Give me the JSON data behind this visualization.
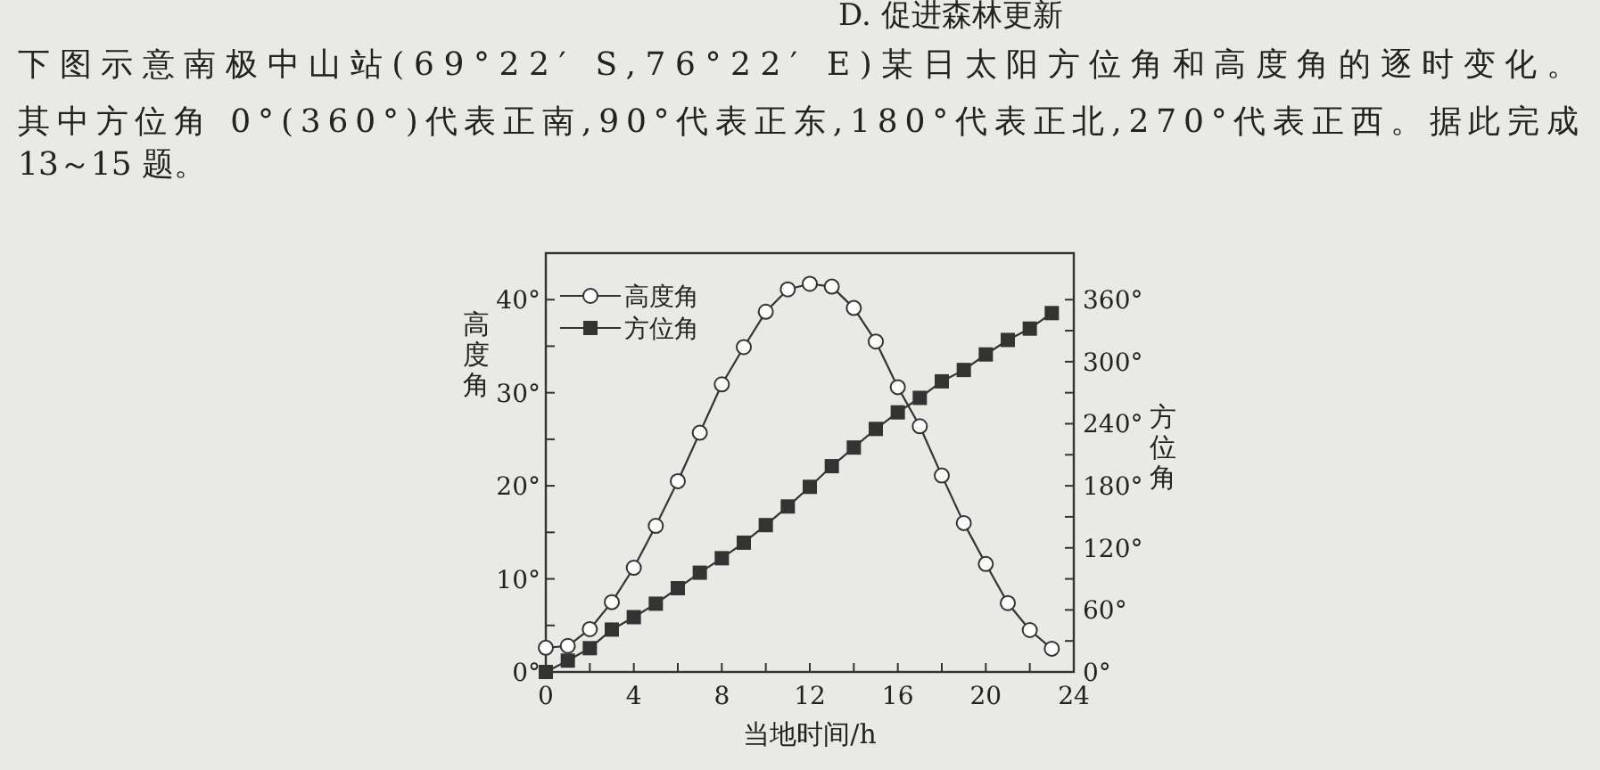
{
  "chart_data": {
    "type": "line",
    "xlabel": "当地时间/h",
    "ylabel": "高度角",
    "y2label": "方位角",
    "annotations": [
      "下图示意南极中山站(69°22′ S,76°22′ E)某日太阳方位角和高度角的逐时变化。",
      "其中方位角 0°(360°)代表正南,90°代表正东,180°代表正北,270°代表正西。据此完成",
      "13～15 题。",
      "D. 促进森林更新"
    ],
    "x": [
      0,
      1,
      2,
      3,
      4,
      5,
      6,
      7,
      8,
      9,
      10,
      11,
      12,
      13,
      14,
      15,
      16,
      17,
      18,
      19,
      20,
      21,
      22,
      23
    ],
    "xlim": [
      0,
      24
    ],
    "ylim": [
      0,
      45
    ],
    "y2lim": [
      0,
      405
    ],
    "xticks": [
      0,
      {
        "value": 2,
        "label": null
      },
      4,
      {
        "value": 6,
        "label": null
      },
      8,
      {
        "value": 10,
        "label": null
      },
      12,
      {
        "value": 14,
        "label": null
      },
      16,
      {
        "value": 18,
        "label": null
      },
      20,
      {
        "value": 22,
        "label": null
      },
      24
    ],
    "yticks": [
      {
        "value": 0,
        "label": "0°"
      },
      {
        "value": 5,
        "label": null
      },
      {
        "value": 10,
        "label": "10°"
      },
      {
        "value": 15,
        "label": null
      },
      {
        "value": 20,
        "label": "20°"
      },
      {
        "value": 25,
        "label": null
      },
      {
        "value": 30,
        "label": "30°"
      },
      {
        "value": 35,
        "label": null
      },
      {
        "value": 40,
        "label": "40°"
      }
    ],
    "y2ticks": [
      {
        "value": 0,
        "label": "0°"
      },
      {
        "value": 30,
        "label": null
      },
      {
        "value": 60,
        "label": "60°"
      },
      {
        "value": 90,
        "label": null
      },
      {
        "value": 120,
        "label": "120°"
      },
      {
        "value": 150,
        "label": null
      },
      {
        "value": 180,
        "label": "180°"
      },
      {
        "value": 210,
        "label": null
      },
      {
        "value": 240,
        "label": "240°"
      },
      {
        "value": 270,
        "label": null
      },
      {
        "value": 300,
        "label": "300°"
      },
      {
        "value": 330,
        "label": null
      },
      {
        "value": 360,
        "label": "360°"
      }
    ],
    "legend": "top left",
    "grid": false,
    "line_style": "solid",
    "series": [
      {
        "name": "高度角",
        "color": "#333333",
        "marker": "circle",
        "values": [
          2.6,
          2.8,
          4.6,
          7.5,
          11.2,
          15.7,
          20.5,
          25.7,
          30.9,
          34.9,
          38.7,
          41.1,
          41.7,
          41.4,
          39.1,
          35.5,
          30.6,
          26.4,
          21.1,
          16.0,
          11.6,
          7.4,
          4.5,
          2.5
        ]
      },
      {
        "name": "方位角",
        "color": "#333333",
        "marker": "square",
        "axis": "y2",
        "values": [
          0,
          11,
          23,
          41,
          53,
          66,
          81,
          96,
          110,
          125,
          142,
          160,
          179,
          199,
          217,
          235,
          251,
          265,
          281,
          292,
          307,
          321,
          332,
          347
        ]
      }
    ]
  }
}
